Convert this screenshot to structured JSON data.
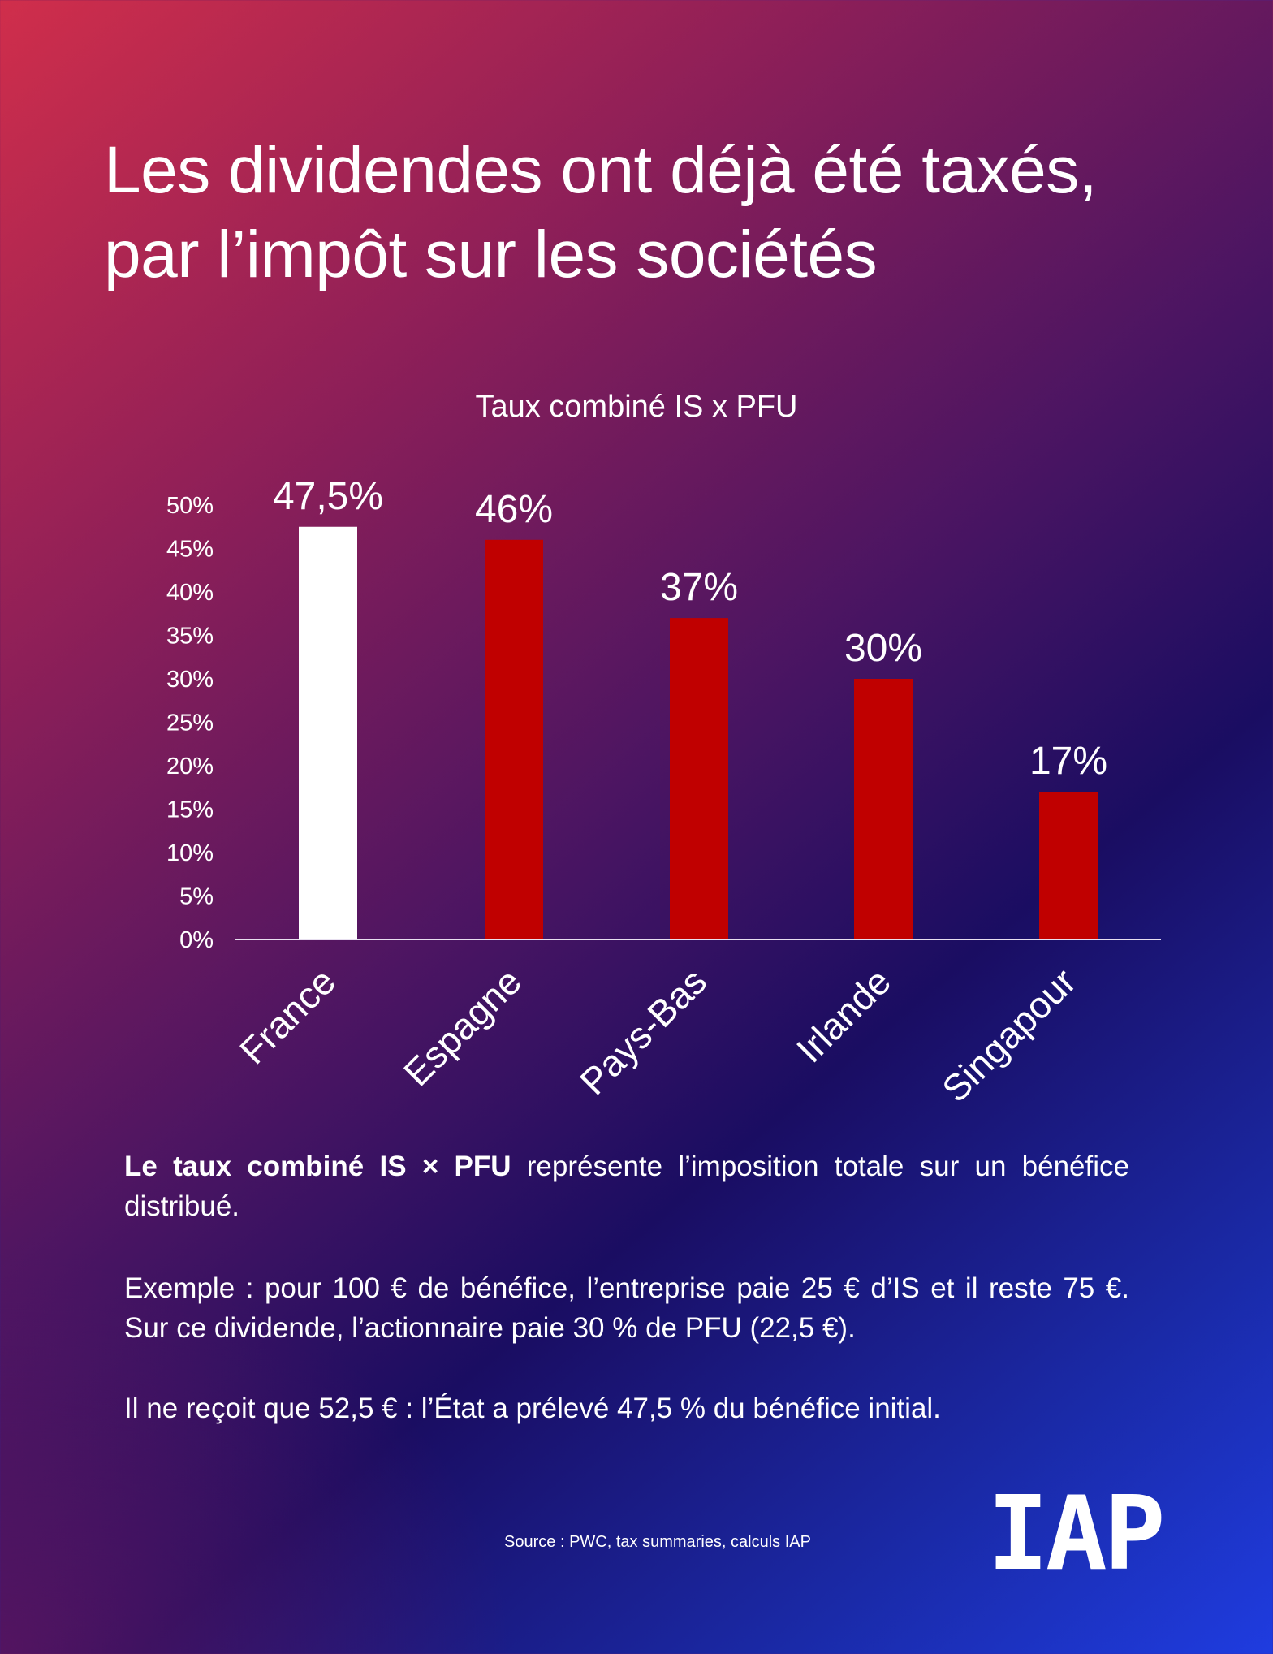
{
  "title": "Les dividendes ont déjà été taxés, par l’impôt sur les sociétés",
  "chart_data": {
    "type": "bar",
    "title": "Taux combiné IS x PFU",
    "categories": [
      "France",
      "Espagne",
      "Pays-Bas",
      "Irlande",
      "Singapour"
    ],
    "values": [
      47.5,
      46,
      37,
      30,
      17
    ],
    "value_labels": [
      "47,5%",
      "46%",
      "37%",
      "30%",
      "17%"
    ],
    "colors": [
      "#ffffff",
      "#c00000",
      "#c00000",
      "#c00000",
      "#c00000"
    ],
    "ylim": [
      0,
      50
    ],
    "yticks": [
      0,
      5,
      10,
      15,
      20,
      25,
      30,
      35,
      40,
      45,
      50
    ],
    "ytick_labels": [
      "0%",
      "5%",
      "10%",
      "15%",
      "20%",
      "25%",
      "30%",
      "35%",
      "40%",
      "45%",
      "50%"
    ],
    "xlabel": "",
    "ylabel": "",
    "grid": false
  },
  "text": {
    "p1_bold": "Le taux combiné IS × PFU",
    "p1_rest": " représente l’imposition totale sur un bénéfice distribué.",
    "p2": "Exemple : pour 100 € de bénéfice, l’entreprise paie 25 € d’IS et il reste 75 €. Sur ce dividende, l’actionnaire paie 30 % de PFU (22,5 €).",
    "p3": "Il ne reçoit que 52,5 € : l’État a prélevé 47,5 % du bénéfice initial."
  },
  "source": "Source : PWC, tax summaries, calculs IAP",
  "logo": "IAP"
}
